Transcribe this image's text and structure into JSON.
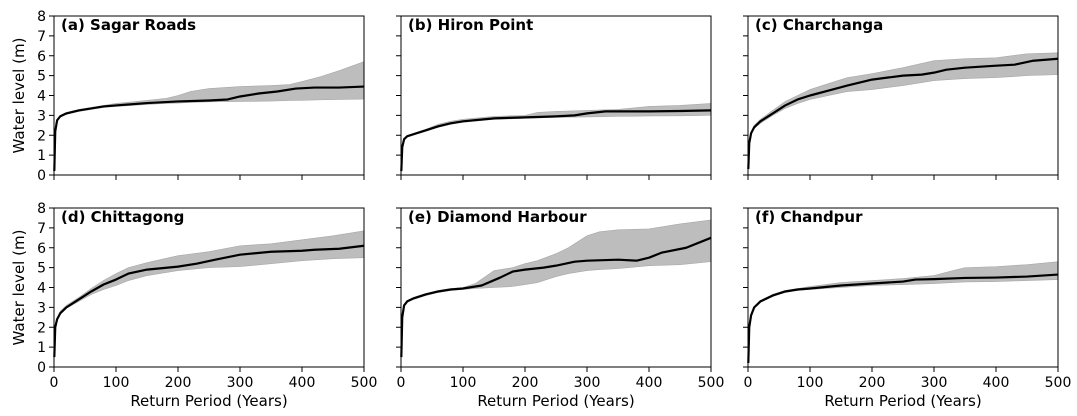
{
  "figure": {
    "ylabel": "Water level (m)",
    "xlabel": "Return Period (Years)"
  },
  "chart_data": [
    {
      "type": "line",
      "title": "(a) Sagar Roads",
      "xlabel": "Return Period (Years)",
      "ylabel": "Water level (m)",
      "xlim": [
        0,
        500
      ],
      "ylim": [
        0,
        8
      ],
      "xticks": [
        0,
        100,
        200,
        300,
        400,
        500
      ],
      "yticks": [
        0,
        1,
        2,
        3,
        4,
        5,
        6,
        7,
        8
      ],
      "colors": {
        "line": "#000000",
        "band": "#bdbdbd"
      },
      "series": [
        {
          "x": [
            0.5,
            2,
            5,
            10,
            20,
            40,
            60,
            80,
            100,
            150,
            200,
            250,
            280,
            300,
            330,
            360,
            390,
            420,
            460,
            500
          ],
          "y": [
            0.2,
            2.2,
            2.75,
            2.95,
            3.1,
            3.25,
            3.35,
            3.45,
            3.5,
            3.62,
            3.7,
            3.75,
            3.8,
            3.95,
            4.1,
            4.2,
            4.35,
            4.4,
            4.4,
            4.45
          ]
        }
      ],
      "band": {
        "x": [
          0.5,
          2,
          5,
          10,
          20,
          40,
          60,
          80,
          100,
          150,
          180,
          200,
          220,
          250,
          300,
          350,
          380,
          400,
          430,
          460,
          500
        ],
        "lower": [
          0.2,
          2.2,
          2.75,
          2.95,
          3.05,
          3.2,
          3.3,
          3.4,
          3.45,
          3.55,
          3.6,
          3.62,
          3.65,
          3.68,
          3.7,
          3.72,
          3.75,
          3.76,
          3.78,
          3.8,
          3.82
        ],
        "upper": [
          0.2,
          2.2,
          2.8,
          3.0,
          3.15,
          3.3,
          3.4,
          3.5,
          3.6,
          3.75,
          3.85,
          4.0,
          4.2,
          4.35,
          4.45,
          4.5,
          4.55,
          4.7,
          4.95,
          5.25,
          5.7
        ]
      }
    },
    {
      "type": "line",
      "title": "(b) Hiron Point",
      "xlabel": "Return Period (Years)",
      "ylabel": "",
      "xlim": [
        0,
        500
      ],
      "ylim": [
        0,
        8
      ],
      "xticks": [
        0,
        100,
        200,
        300,
        400,
        500
      ],
      "yticks": [
        0,
        1,
        2,
        3,
        4,
        5,
        6,
        7,
        8
      ],
      "colors": {
        "line": "#000000",
        "band": "#bdbdbd"
      },
      "series": [
        {
          "x": [
            0.5,
            2,
            5,
            10,
            20,
            40,
            60,
            80,
            100,
            150,
            200,
            250,
            280,
            300,
            330,
            400,
            450,
            500
          ],
          "y": [
            0.2,
            1.4,
            1.8,
            1.95,
            2.05,
            2.25,
            2.45,
            2.6,
            2.7,
            2.85,
            2.9,
            2.95,
            3.0,
            3.1,
            3.2,
            3.2,
            3.22,
            3.25
          ]
        }
      ],
      "band": {
        "x": [
          0.5,
          2,
          5,
          10,
          20,
          40,
          60,
          80,
          100,
          150,
          200,
          220,
          250,
          300,
          350,
          400,
          450,
          500
        ],
        "lower": [
          0.2,
          1.4,
          1.75,
          1.9,
          2.0,
          2.2,
          2.4,
          2.55,
          2.65,
          2.8,
          2.85,
          2.87,
          2.9,
          2.92,
          2.95,
          2.97,
          2.98,
          3.0
        ],
        "upper": [
          0.2,
          1.4,
          1.85,
          2.0,
          2.1,
          2.3,
          2.55,
          2.7,
          2.8,
          2.95,
          3.0,
          3.15,
          3.2,
          3.25,
          3.3,
          3.45,
          3.5,
          3.6
        ]
      }
    },
    {
      "type": "line",
      "title": "(c) Charchanga",
      "xlabel": "Return Period (Years)",
      "ylabel": "",
      "xlim": [
        0,
        500
      ],
      "ylim": [
        0,
        8
      ],
      "xticks": [
        0,
        100,
        200,
        300,
        400,
        500
      ],
      "yticks": [
        0,
        1,
        2,
        3,
        4,
        5,
        6,
        7,
        8
      ],
      "colors": {
        "line": "#000000",
        "band": "#bdbdbd"
      },
      "series": [
        {
          "x": [
            0.5,
            2,
            5,
            10,
            20,
            40,
            60,
            80,
            100,
            130,
            160,
            200,
            250,
            280,
            300,
            320,
            350,
            400,
            430,
            460,
            500
          ],
          "y": [
            0.3,
            1.6,
            2.1,
            2.4,
            2.7,
            3.1,
            3.5,
            3.8,
            4.0,
            4.25,
            4.5,
            4.8,
            5.0,
            5.05,
            5.15,
            5.3,
            5.4,
            5.5,
            5.55,
            5.75,
            5.85
          ]
        }
      ],
      "band": {
        "x": [
          0.5,
          2,
          5,
          10,
          20,
          40,
          60,
          80,
          100,
          130,
          160,
          200,
          250,
          300,
          350,
          400,
          450,
          500
        ],
        "lower": [
          0.3,
          1.6,
          2.05,
          2.35,
          2.6,
          3.0,
          3.35,
          3.6,
          3.8,
          4.0,
          4.2,
          4.3,
          4.5,
          4.75,
          4.85,
          4.9,
          5.0,
          5.05
        ],
        "upper": [
          0.3,
          1.6,
          2.15,
          2.5,
          2.8,
          3.25,
          3.7,
          4.0,
          4.3,
          4.6,
          4.9,
          5.1,
          5.4,
          5.75,
          5.85,
          5.9,
          6.1,
          6.15
        ]
      }
    },
    {
      "type": "line",
      "title": "(d) Chittagong",
      "xlabel": "Return Period (Years)",
      "ylabel": "Water level (m)",
      "xlim": [
        0,
        500
      ],
      "ylim": [
        0,
        8
      ],
      "xticks": [
        0,
        100,
        200,
        300,
        400,
        500
      ],
      "yticks": [
        0,
        1,
        2,
        3,
        4,
        5,
        6,
        7,
        8
      ],
      "colors": {
        "line": "#000000",
        "band": "#bdbdbd"
      },
      "series": [
        {
          "x": [
            0.5,
            2,
            5,
            10,
            20,
            40,
            60,
            80,
            100,
            120,
            150,
            200,
            230,
            260,
            300,
            350,
            400,
            420,
            460,
            500
          ],
          "y": [
            0.5,
            2.0,
            2.4,
            2.7,
            3.0,
            3.4,
            3.8,
            4.15,
            4.4,
            4.7,
            4.9,
            5.05,
            5.2,
            5.4,
            5.65,
            5.8,
            5.85,
            5.9,
            5.95,
            6.1
          ]
        }
      ],
      "band": {
        "x": [
          0.5,
          2,
          5,
          10,
          20,
          40,
          60,
          80,
          100,
          120,
          150,
          200,
          250,
          300,
          350,
          400,
          450,
          500
        ],
        "lower": [
          0.5,
          2.0,
          2.35,
          2.65,
          2.95,
          3.3,
          3.65,
          3.9,
          4.1,
          4.35,
          4.6,
          4.85,
          5.0,
          5.05,
          5.2,
          5.35,
          5.45,
          5.5
        ],
        "upper": [
          0.5,
          2.0,
          2.45,
          2.8,
          3.1,
          3.5,
          3.95,
          4.35,
          4.7,
          5.0,
          5.25,
          5.6,
          5.8,
          6.1,
          6.2,
          6.4,
          6.6,
          6.85
        ]
      }
    },
    {
      "type": "line",
      "title": "(e) Diamond Harbour",
      "xlabel": "Return Period (Years)",
      "ylabel": "",
      "xlim": [
        0,
        500
      ],
      "ylim": [
        0,
        8
      ],
      "xticks": [
        0,
        100,
        200,
        300,
        400,
        500
      ],
      "yticks": [
        0,
        1,
        2,
        3,
        4,
        5,
        6,
        7,
        8
      ],
      "colors": {
        "line": "#000000",
        "band": "#bdbdbd"
      },
      "series": [
        {
          "x": [
            0.5,
            2,
            5,
            10,
            20,
            40,
            60,
            80,
            100,
            130,
            160,
            180,
            200,
            230,
            250,
            280,
            300,
            350,
            380,
            400,
            420,
            460,
            500
          ],
          "y": [
            0.5,
            2.5,
            3.1,
            3.3,
            3.45,
            3.65,
            3.8,
            3.9,
            3.95,
            4.1,
            4.5,
            4.8,
            4.9,
            5.0,
            5.1,
            5.3,
            5.35,
            5.4,
            5.35,
            5.5,
            5.75,
            6.0,
            6.5
          ]
        }
      ],
      "band": {
        "x": [
          0.5,
          2,
          5,
          10,
          20,
          40,
          60,
          80,
          100,
          120,
          150,
          180,
          200,
          220,
          250,
          270,
          300,
          320,
          350,
          400,
          450,
          500
        ],
        "lower": [
          0.5,
          2.5,
          3.05,
          3.25,
          3.4,
          3.6,
          3.75,
          3.85,
          3.9,
          3.95,
          4.0,
          4.05,
          4.15,
          4.25,
          4.55,
          4.7,
          4.85,
          4.9,
          4.95,
          5.1,
          5.15,
          5.3
        ],
        "upper": [
          0.5,
          2.5,
          3.15,
          3.35,
          3.5,
          3.7,
          3.85,
          3.95,
          4.0,
          4.2,
          4.85,
          5.0,
          5.2,
          5.35,
          5.7,
          6.0,
          6.6,
          6.8,
          6.9,
          6.95,
          7.2,
          7.4
        ]
      }
    },
    {
      "type": "line",
      "title": "(f) Chandpur",
      "xlabel": "Return Period (Years)",
      "ylabel": "",
      "xlim": [
        0,
        500
      ],
      "ylim": [
        0,
        8
      ],
      "xticks": [
        0,
        100,
        200,
        300,
        400,
        500
      ],
      "yticks": [
        0,
        1,
        2,
        3,
        4,
        5,
        6,
        7,
        8
      ],
      "colors": {
        "line": "#000000",
        "band": "#bdbdbd"
      },
      "series": [
        {
          "x": [
            0.5,
            2,
            5,
            10,
            20,
            40,
            60,
            80,
            100,
            150,
            200,
            250,
            270,
            300,
            350,
            400,
            450,
            500
          ],
          "y": [
            0.2,
            2.0,
            2.6,
            3.0,
            3.3,
            3.6,
            3.8,
            3.9,
            3.95,
            4.1,
            4.2,
            4.3,
            4.4,
            4.42,
            4.48,
            4.5,
            4.55,
            4.65
          ]
        }
      ],
      "band": {
        "x": [
          0.5,
          2,
          5,
          10,
          20,
          40,
          60,
          80,
          100,
          150,
          200,
          250,
          300,
          330,
          350,
          400,
          450,
          500
        ],
        "lower": [
          0.2,
          2.0,
          2.55,
          2.95,
          3.25,
          3.55,
          3.75,
          3.85,
          3.9,
          4.0,
          4.1,
          4.15,
          4.2,
          4.25,
          4.28,
          4.3,
          4.35,
          4.4
        ],
        "upper": [
          0.2,
          2.0,
          2.65,
          3.05,
          3.35,
          3.65,
          3.85,
          3.95,
          4.05,
          4.25,
          4.35,
          4.45,
          4.6,
          4.85,
          5.0,
          5.05,
          5.15,
          5.3
        ]
      }
    }
  ]
}
